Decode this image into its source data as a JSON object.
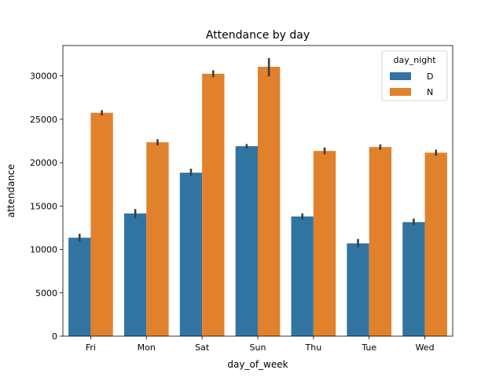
{
  "chart_data": {
    "type": "bar",
    "title": "Attendance by day",
    "xlabel": "day_of_week",
    "ylabel": "attendance",
    "categories": [
      "Fri",
      "Mon",
      "Sat",
      "Sun",
      "Thu",
      "Tue",
      "Wed"
    ],
    "ylim": [
      0,
      33500
    ],
    "yticks": [
      0,
      5000,
      10000,
      15000,
      20000,
      25000,
      30000
    ],
    "grid": false,
    "legend": {
      "title": "day_night",
      "placement": "top-right"
    },
    "series": [
      {
        "name": "D",
        "color": "#3274a1",
        "values": [
          11350,
          14150,
          18850,
          21900,
          13800,
          10700,
          13150
        ],
        "err_low": [
          10900,
          13600,
          18500,
          21650,
          13450,
          10250,
          12800
        ],
        "err_high": [
          11800,
          14650,
          19300,
          22150,
          14150,
          11200,
          13550
        ]
      },
      {
        "name": "N",
        "color": "#e1812c",
        "values": [
          25750,
          22350,
          30250,
          31050,
          21350,
          21800,
          21150
        ],
        "err_low": [
          25450,
          22000,
          29850,
          29950,
          20950,
          21500,
          20800
        ],
        "err_high": [
          26050,
          22700,
          30650,
          32050,
          21750,
          22100,
          21500
        ]
      }
    ],
    "error_bar_color": "#3d3d3d"
  }
}
